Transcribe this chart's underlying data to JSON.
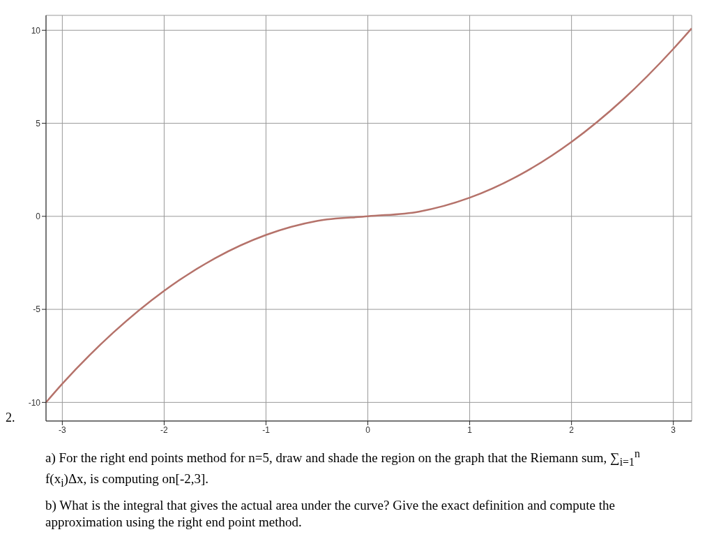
{
  "chart_data": {
    "type": "line",
    "x": [
      -3.16,
      -3,
      -2.5,
      -2,
      -1.5,
      -1,
      -0.5,
      0,
      0.5,
      1,
      1.5,
      2,
      2.5,
      3,
      3.18
    ],
    "series": [
      {
        "color": "#b5726a",
        "values": [
          -10,
          -9,
          -6.25,
          -4,
          -2.25,
          -1,
          -0.25,
          0,
          0.25,
          1,
          2.25,
          4,
          6.25,
          9,
          10.1
        ]
      }
    ],
    "xlim": [
      -3.16,
      3.18
    ],
    "ylim": [
      -11,
      10.8
    ],
    "xticks": [
      -3,
      -2,
      -1,
      0,
      1,
      2,
      3
    ],
    "yticks": [
      -10,
      -5,
      0,
      5,
      10
    ],
    "grid": true,
    "marker": "none",
    "line_style": "solid",
    "annotations": [
      "2.",
      "a) For the right end points method for n=5, draw and shade the region on the graph that the Riemann sum, ∑$_{i=1}$$^{n}$ f(x$_{i}$)Δx, is computing on[-2,3].",
      "b) What is the integral that gives the actual area under the curve? Give the exact definition and compute the approximation using the right end point method."
    ]
  }
}
